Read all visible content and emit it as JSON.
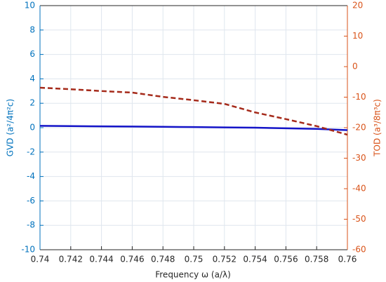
{
  "chart_data": {
    "type": "line",
    "xlabel": "Frequency ω (a/λ)",
    "ylabel": "GVD (a²/4π²c)",
    "y2label": "TOD (a³/8π³c)",
    "x": [
      0.74,
      0.742,
      0.744,
      0.746,
      0.748,
      0.75,
      0.752,
      0.754,
      0.756,
      0.758,
      0.76
    ],
    "series": [
      {
        "color": "#1414c8",
        "line_style": "solid",
        "values": [
          0.15,
          0.13,
          0.11,
          0.09,
          0.07,
          0.05,
          0.02,
          0,
          -0.05,
          -0.1,
          -0.2
        ]
      },
      {
        "color": "#a52a1a",
        "line_style": "dashed",
        "axis": "y2",
        "values": [
          -6.9,
          -7.4,
          -8.0,
          -8.5,
          -9.9,
          -11,
          -12.2,
          -15,
          -17.2,
          -19.5,
          -22.3
        ]
      }
    ],
    "xlim": [
      0.74,
      0.76
    ],
    "xticks": [
      0.74,
      0.742,
      0.744,
      0.746,
      0.748,
      0.75,
      0.752,
      0.754,
      0.756,
      0.758,
      0.76
    ],
    "ylim": [
      -10,
      10
    ],
    "yticks": [
      -10,
      -8,
      -6,
      -4,
      -2,
      0,
      2,
      4,
      6,
      8,
      10
    ],
    "y2lim": [
      -60,
      20
    ],
    "y2ticks": [
      -60,
      -50,
      -40,
      -30,
      -20,
      -10,
      0,
      10,
      20
    ],
    "ycolor": "#0072bd",
    "y2color": "#d95319",
    "grid": true
  }
}
